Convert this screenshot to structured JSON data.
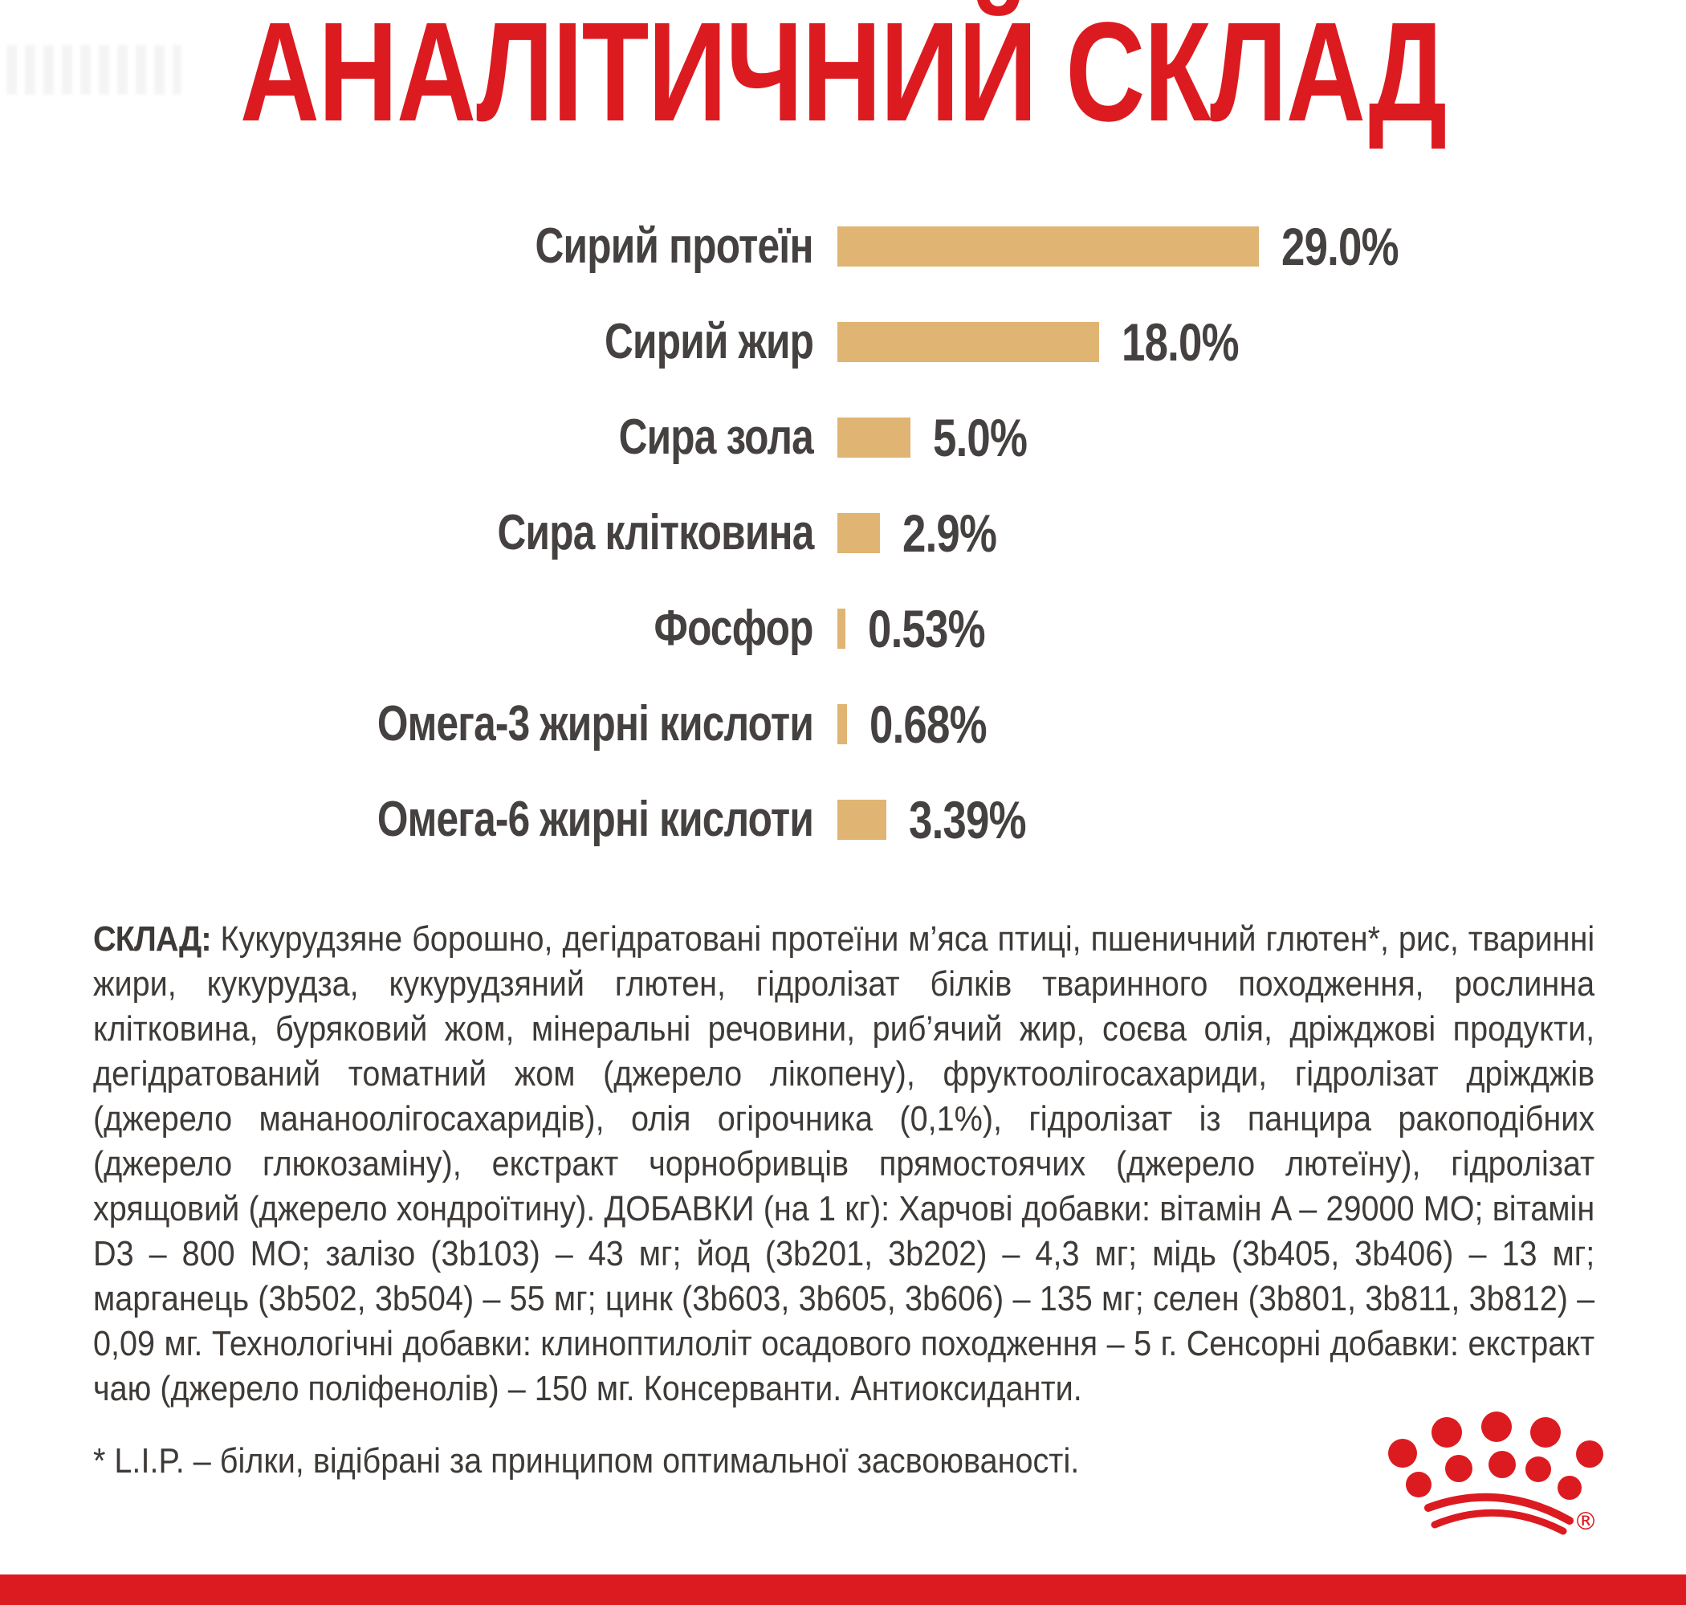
{
  "title": "АНАЛІТИЧНИЙ СКЛАД",
  "chart_data": {
    "type": "bar",
    "orientation": "horizontal",
    "title": "АНАЛІТИЧНИЙ СКЛАД",
    "categories": [
      "Сирий протеїн",
      "Сирий жир",
      "Сира зола",
      "Сира клітковина",
      "Фосфор",
      "Омега-3 жирні кислоти",
      "Омега-6 жирні кислоти"
    ],
    "values": [
      29.0,
      18.0,
      5.0,
      2.9,
      0.53,
      0.68,
      3.39
    ],
    "value_labels": [
      "29.0%",
      "18.0%",
      "5.0%",
      "2.9%",
      "0.53%",
      "0.68%",
      "3.39%"
    ],
    "unit": "%",
    "xlim": [
      0,
      29
    ],
    "grid": false,
    "legend": false,
    "bar_color": "#E0B472",
    "label_color": "#454140"
  },
  "composition": {
    "heading": "СКЛАД:",
    "text": "Кукурудзяне борошно, дегідратовані протеїни м’яса птиці, пшеничний глютен*, рис, тваринні жири, кукурудза, кукурудзяний глютен, гідролізат білків тваринного походження, рослинна клітковина, буряковий жом, мінеральні речовини, риб’ячий жир, соєва олія, дріжджові продукти, дегідратований томатний жом (джерело лікопену), фруктоолігосахариди, гідролізат дріжджів (джерело мананоолігосахаридів), олія огірочника (0,1%), гідролізат із панцира ракоподібних (джерело глюкозаміну), екстракт чорнобривців прямостоячих (джерело лютеїну), гідролізат хрящовий (джерело хондроїтину). ДОБАВКИ (на 1 кг): Харчові добавки: вітамін A – 29000 МО; вітамін D3 – 800 МО; залізо (3b103) – 43 мг; йод (3b201, 3b202) – 4,3 мг; мідь (3b405, 3b406) – 13 мг; марганець (3b502, 3b504) – 55 мг; цинк (3b603, 3b605, 3b606) – 135 мг; селен (3b801, 3b811, 3b812) – 0,09 мг. Технологічні добавки: клиноптилоліт осадового походження – 5 г. Сенсорні добавки: екстракт чаю (джерело поліфенолів) – 150 мг. Консерванти. Антиоксиданти."
  },
  "footnote": "* L.I.P. – білки, відібрані за принципом оптимальної засвоюваності.",
  "logo": {
    "name": "royal-canin-crown",
    "registered_mark": "®"
  },
  "colors": {
    "brand_red": "#DC1B21",
    "bar_tan": "#E0B472",
    "text_dark": "#454140"
  }
}
